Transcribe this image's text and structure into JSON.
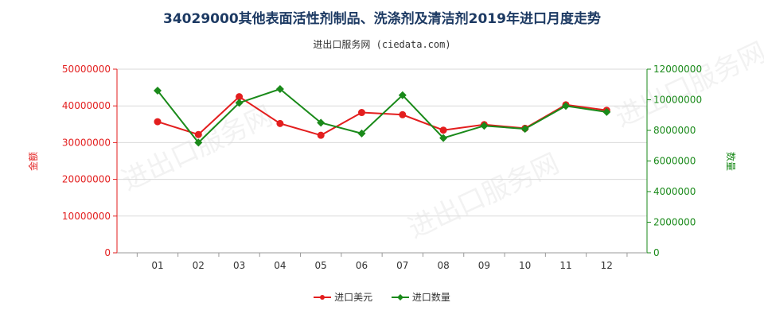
{
  "header": {
    "title": "34029000其他表面活性剂制品、洗涤剂及清洁剂2019年进口月度走势",
    "subtitle": "进出口服务网 (ciedata.com)"
  },
  "watermark": "进出口服务网",
  "colors": {
    "amount": "#e31e1e",
    "quantity": "#1a8a1a",
    "title": "#1d3a63",
    "grid": "#d9d9d9"
  },
  "chart_data": {
    "type": "line",
    "categories": [
      "01",
      "02",
      "03",
      "04",
      "05",
      "06",
      "07",
      "08",
      "09",
      "10",
      "11",
      "12"
    ],
    "series": [
      {
        "name": "进口美元",
        "axis": "left",
        "values": [
          35700000,
          32200000,
          42500000,
          35200000,
          32000000,
          38200000,
          37600000,
          33400000,
          34900000,
          33900000,
          40300000,
          38800000
        ]
      },
      {
        "name": "进口数量",
        "axis": "right",
        "values": [
          10600000,
          7200000,
          9800000,
          10700000,
          8500000,
          7800000,
          10300000,
          7500000,
          8300000,
          8100000,
          9600000,
          9200000
        ]
      }
    ],
    "ylabel_left": "金额",
    "ylabel_right": "数量",
    "ylim_left": [
      0,
      50000000
    ],
    "ylim_right": [
      0,
      12000000
    ],
    "yticks_left": [
      "0",
      "10000000",
      "20000000",
      "30000000",
      "40000000",
      "50000000"
    ],
    "yticks_right": [
      "0",
      "2000000",
      "4000000",
      "6000000",
      "8000000",
      "10000000",
      "12000000"
    ],
    "grid": true,
    "legend_position": "bottom-center"
  }
}
